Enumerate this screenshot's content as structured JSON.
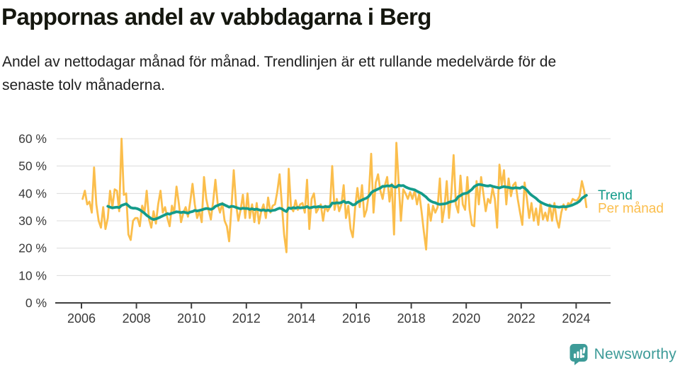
{
  "header": {
    "title": "Pappornas andel av vabbdagarna i Berg",
    "subtitle_line1": "Andel av nettodagar månad för månad. Trendlinjen är ett rullande medelvärde för de",
    "subtitle_line2": "senaste tolv månaderna."
  },
  "footer": {
    "brand": "Newsworthy",
    "brand_color": "#3d9b98",
    "logo_icon": "bar-chart-speech-bubble-icon"
  },
  "chart_data": {
    "type": "line",
    "title": "Pappornas andel av vabbdagarna i Berg",
    "xlabel": "",
    "ylabel": "",
    "ylim": [
      0,
      60
    ],
    "grid": "horizontal",
    "y_ticks": [
      0,
      10,
      20,
      30,
      40,
      50,
      60
    ],
    "y_tick_labels": [
      "0 %",
      "10 %",
      "20 %",
      "30 %",
      "40 %",
      "50 %",
      "60 %"
    ],
    "x_ticks": [
      2006,
      2008,
      2010,
      2012,
      2014,
      2016,
      2018,
      2020,
      2022,
      2024
    ],
    "x_tick_labels": [
      "2006",
      "2008",
      "2010",
      "2012",
      "2014",
      "2016",
      "2018",
      "2020",
      "2022",
      "2024"
    ],
    "legend": {
      "position": "right-of-line-end",
      "labels": [
        "Trend",
        "Per månad"
      ]
    },
    "series": [
      {
        "id": "per-manad",
        "name": "Per månad",
        "color": "#fbbe4c",
        "start_year": 2006,
        "start_month": 1,
        "unit": "%",
        "values": [
          38,
          41,
          36,
          37,
          33,
          49.5,
          36,
          30,
          27.5,
          35,
          27,
          31,
          41,
          35,
          41.5,
          41,
          33.5,
          60,
          39.5,
          40,
          25,
          23,
          30,
          31,
          31,
          28,
          35.5,
          33,
          41,
          30.5,
          27.5,
          33.5,
          29,
          36,
          41,
          33,
          35,
          31,
          28,
          35.5,
          33,
          42.5,
          36.5,
          29.5,
          33,
          35,
          31.5,
          37,
          43.5,
          36,
          31,
          33.5,
          29.5,
          46,
          38,
          34,
          30.5,
          37,
          45,
          36,
          33,
          36.5,
          30,
          28,
          22.5,
          35,
          48.5,
          36,
          30,
          34,
          39.5,
          31,
          40,
          31,
          36,
          29.5,
          36.5,
          29,
          33.5,
          36,
          31,
          38.5,
          33,
          35.5,
          36,
          40.5,
          47,
          36,
          25,
          18.5,
          49,
          35,
          33.5,
          37.5,
          34,
          36,
          36.5,
          33,
          45,
          27,
          38,
          40,
          33,
          34.5,
          36,
          30,
          35.5,
          33.5,
          35,
          50,
          34,
          38,
          33.5,
          36,
          43,
          31,
          35.5,
          27,
          24,
          35,
          42,
          35,
          43,
          31.5,
          34,
          40,
          54.5,
          33,
          44,
          47,
          41,
          38,
          43,
          46,
          37,
          43.5,
          25,
          58.5,
          44,
          30,
          41.5,
          40,
          38,
          40.5,
          38,
          41,
          36,
          40,
          33.5,
          26,
          19.5,
          36,
          30,
          35.5,
          33,
          35,
          45.5,
          29.5,
          35,
          44.5,
          31,
          40,
          54,
          36,
          33,
          46.5,
          36,
          34,
          46,
          34,
          28.5,
          28,
          44.5,
          36,
          46,
          40,
          33.5,
          38,
          36.5,
          42,
          38,
          27.5,
          50.5,
          43,
          48.5,
          36,
          45.5,
          39,
          43,
          44,
          38,
          33,
          28.5,
          44,
          38,
          31,
          36.5,
          30,
          34.5,
          28.5,
          36.5,
          30.5,
          33,
          30,
          36,
          30,
          36.5,
          30.5,
          27.5,
          33,
          36,
          34,
          36.5,
          36,
          38,
          37.5,
          37.5,
          39,
          44.5,
          41,
          35
        ]
      },
      {
        "id": "trend",
        "name": "Trend",
        "color": "#149b8a",
        "start_year": 2006,
        "start_month": 12,
        "unit": "%",
        "values": [
          35.3,
          35,
          34.7,
          34.9,
          35,
          34.8,
          35.6,
          35.9,
          36.2,
          35.5,
          34.8,
          34.6,
          34.6,
          34.4,
          34,
          33.4,
          32.8,
          32,
          31.4,
          30.8,
          30.5,
          30.7,
          31,
          31.4,
          31.8,
          32.2,
          32.6,
          32.4,
          32.8,
          33,
          33.3,
          33.2,
          33,
          33.2,
          33,
          32.8,
          33.2,
          33.4,
          33.8,
          33.6,
          33.8,
          34,
          34.3,
          34.5,
          34.4,
          34.2,
          34.5,
          35.3,
          35.6,
          36,
          36.2,
          35.8,
          35.4,
          35,
          35.3,
          35.2,
          34.9,
          34.6,
          34.4,
          34.6,
          34.5,
          34.5,
          34.2,
          34.4,
          34.1,
          34.3,
          34,
          33.8,
          34,
          33.7,
          33.9,
          33.6,
          33.8,
          33.9,
          34.3,
          34.6,
          34.4,
          33.8,
          33.4,
          34.7,
          34.5,
          34.8,
          34.6,
          34.9,
          34.7,
          34.8,
          34.9,
          35.2,
          34.7,
          34.9,
          35.1,
          35,
          35.2,
          35.1,
          35,
          35.2,
          35.1,
          35.2,
          36.5,
          36.4,
          36.6,
          36.5,
          36.7,
          37.2,
          36.6,
          36.8,
          36.4,
          35.8,
          36,
          36.8,
          37.2,
          37.6,
          38,
          38.3,
          39,
          40.2,
          40.9,
          41.2,
          41.6,
          42,
          42.6,
          42.6,
          42.8,
          42.7,
          43,
          42.4,
          42.3,
          43,
          42.8,
          42.9,
          42.4,
          42,
          41.7,
          41.5,
          41.3,
          40.8,
          40.4,
          40,
          39.3,
          38.7,
          37.8,
          37.2,
          36.8,
          36.6,
          36.2,
          36,
          36.1,
          36.2,
          36.4,
          36.8,
          37,
          37.2,
          37.6,
          38.8,
          39.2,
          39.8,
          40,
          40.2,
          40.8,
          41.5,
          42.5,
          43,
          43.3,
          43.2,
          43,
          42.8,
          42.7,
          42.9,
          42.6,
          42.4,
          42.2,
          42,
          42.3,
          42.5,
          42.3,
          42.2,
          42,
          41.9,
          42.1,
          42,
          41.9,
          42.4,
          42,
          41.2,
          40.2,
          39.4,
          38.8,
          38.2,
          37.4,
          36.8,
          36.4,
          36,
          35.7,
          35.5,
          35.3,
          35.2,
          35.1,
          35,
          35.1,
          35.2,
          35.1,
          35.3,
          35.5,
          35.8,
          36.2,
          36.6,
          37.2,
          38.2,
          38.8,
          39.3
        ]
      }
    ]
  }
}
